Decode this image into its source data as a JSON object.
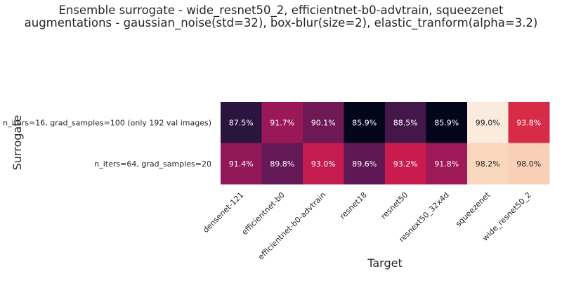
{
  "chart_data": {
    "type": "heatmap",
    "title_lines": [
      "Ensemble surrogate - wide_resnet50_2, efficientnet-b0-advtrain, squeezenet",
      "augmentations - gaussian_noise(std=32), box-blur(size=2), elastic_tranform(alpha=3.2)"
    ],
    "xlabel": "Target",
    "ylabel": "Surrogate",
    "x_categories": [
      "densenet-121",
      "efficientnet-b0",
      "efficientnet-b0-advtrain",
      "resnet18",
      "resnet50",
      "resnext50_32x4d",
      "squeezenet",
      "wide_resnet50_2"
    ],
    "y_categories": [
      "n_iters=16, grad_samples=100 (only 192 val images)",
      "n_iters=64, grad_samples=20"
    ],
    "values": [
      [
        87.5,
        91.7,
        90.1,
        85.9,
        88.5,
        85.9,
        99.0,
        93.8
      ],
      [
        91.4,
        89.8,
        93.0,
        89.6,
        93.2,
        91.8,
        98.2,
        98.0
      ]
    ],
    "value_labels": [
      [
        "87.5%",
        "91.7%",
        "90.1%",
        "85.9%",
        "88.5%",
        "85.9%",
        "99.0%",
        "93.8%"
      ],
      [
        "91.4%",
        "89.8%",
        "93.0%",
        "89.6%",
        "93.2%",
        "91.8%",
        "98.2%",
        "98.0%"
      ]
    ],
    "colormap": "rocket",
    "colorbar": false
  }
}
